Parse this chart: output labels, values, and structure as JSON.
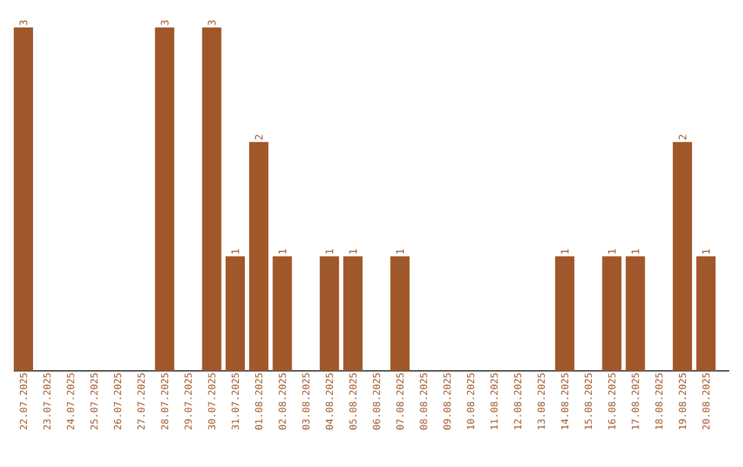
{
  "chart_data": {
    "type": "bar",
    "categories": [
      "22.07.2025",
      "23.07.2025",
      "24.07.2025",
      "25.07.2025",
      "26.07.2025",
      "27.07.2025",
      "28.07.2025",
      "29.07.2025",
      "30.07.2025",
      "31.07.2025",
      "01.08.2025",
      "02.08.2025",
      "03.08.2025",
      "04.08.2025",
      "05.08.2025",
      "06.08.2025",
      "07.08.2025",
      "08.08.2025",
      "09.08.2025",
      "10.08.2025",
      "11.08.2025",
      "12.08.2025",
      "13.08.2025",
      "14.08.2025",
      "15.08.2025",
      "16.08.2025",
      "17.08.2025",
      "18.08.2025",
      "19.08.2025",
      "20.08.2025"
    ],
    "values": [
      3,
      0,
      0,
      0,
      0,
      0,
      3,
      0,
      3,
      1,
      2,
      1,
      0,
      1,
      1,
      0,
      1,
      0,
      0,
      0,
      0,
      0,
      0,
      1,
      0,
      1,
      1,
      0,
      2,
      1
    ],
    "value_labels": [
      "3",
      null,
      null,
      null,
      null,
      null,
      "3",
      null,
      "3",
      "1",
      "2",
      "1",
      null,
      "1",
      "1",
      null,
      "1",
      null,
      null,
      null,
      null,
      null,
      null,
      "1",
      null,
      "1",
      "1",
      null,
      "2",
      "1"
    ],
    "color": "#a0572a"
  }
}
